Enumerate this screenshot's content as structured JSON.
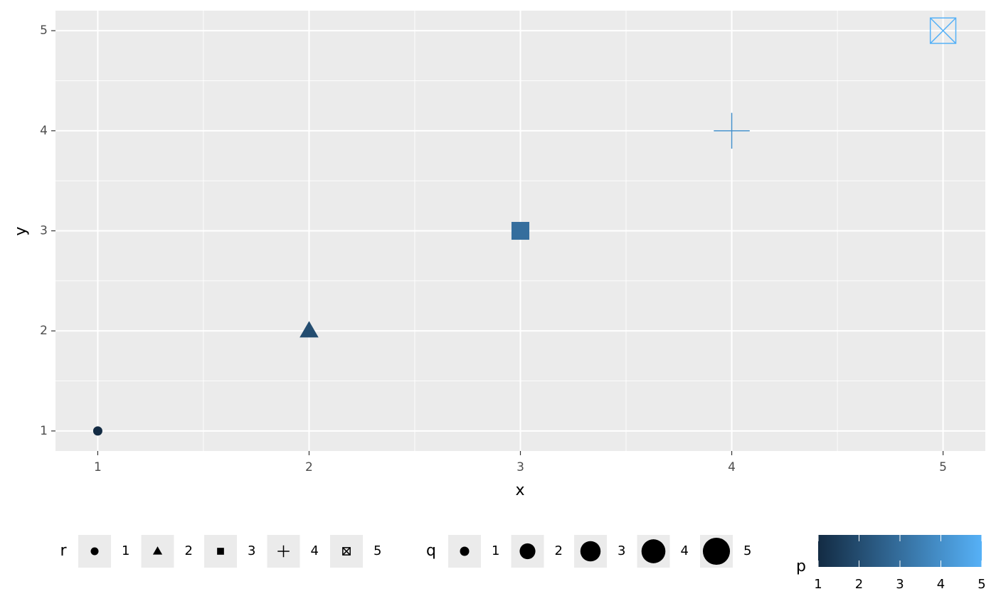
{
  "chart_data": {
    "type": "scatter",
    "x_label": "x",
    "y_label": "y",
    "x": [
      1,
      2,
      3,
      4,
      5
    ],
    "y": [
      1,
      2,
      3,
      4,
      5
    ],
    "r": [
      1,
      2,
      3,
      4,
      5
    ],
    "q": [
      1,
      2,
      3,
      4,
      5
    ],
    "p": [
      1,
      2,
      3,
      4,
      5
    ],
    "xlim": [
      0.8,
      5.2
    ],
    "ylim": [
      0.8,
      5.2
    ],
    "xticks": [
      1,
      2,
      3,
      4,
      5
    ],
    "yticks": [
      1,
      2,
      3,
      4,
      5
    ],
    "grid": true,
    "shape_legend": {
      "title": "r",
      "values": [
        1,
        2,
        3,
        4,
        5
      ]
    },
    "size_legend": {
      "title": "q",
      "values": [
        1,
        2,
        3,
        4,
        5
      ]
    },
    "color_legend": {
      "title": "p",
      "lim": [
        1,
        5
      ],
      "ticks": [
        1,
        2,
        3,
        4,
        5
      ],
      "low": "#132B43",
      "high": "#56B1F7"
    },
    "legend_position": "bottom"
  }
}
